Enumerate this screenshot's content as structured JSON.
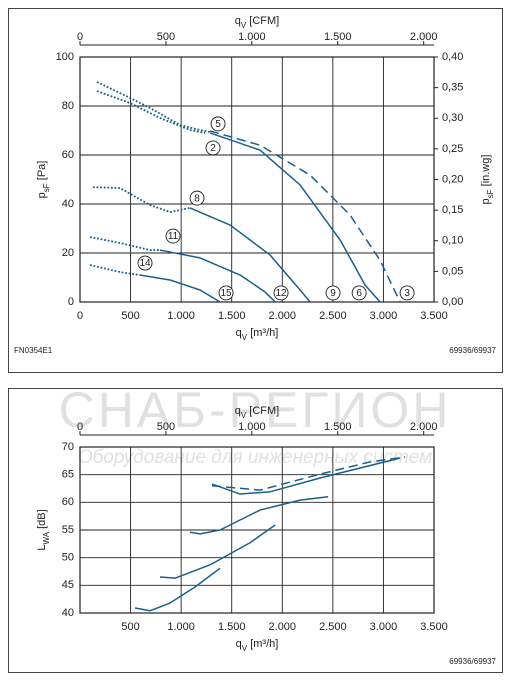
{
  "chart_data": [
    {
      "type": "line",
      "x_label": [
        "q",
        "V",
        " [m³/h]"
      ],
      "x2_label": [
        "q",
        "V",
        " [CFM]"
      ],
      "y_label": [
        "p",
        "sF",
        " [Pa]"
      ],
      "y2_label": [
        "p",
        "sF",
        " [in.wg]"
      ],
      "xlim": [
        0,
        3500
      ],
      "xticks": [
        0,
        500,
        {
          "value": 1000,
          "label": "1.000"
        },
        {
          "value": 1500,
          "label": "1.500"
        },
        {
          "value": 2000,
          "label": "2.000"
        },
        {
          "value": 2500,
          "label": "2.500"
        },
        {
          "value": 3000,
          "label": "3.000"
        },
        {
          "value": 3500,
          "label": "3.500"
        }
      ],
      "x2lim": [
        0,
        2060
      ],
      "x2ticks": [
        0,
        500,
        {
          "value": 1000,
          "label": "1.000"
        },
        {
          "value": 1500,
          "label": "1.500"
        },
        {
          "value": 2000,
          "label": "2.000"
        }
      ],
      "ylim": [
        0,
        100
      ],
      "yticks": [
        0,
        20,
        40,
        60,
        80,
        100
      ],
      "y2lim": [
        0,
        0.4
      ],
      "y2ticks": [
        {
          "value": 0,
          "label": "0,00"
        },
        {
          "value": 0.05,
          "label": "0,05"
        },
        {
          "value": 0.1,
          "label": "0,10"
        },
        {
          "value": 0.15,
          "label": "0,15"
        },
        {
          "value": 0.2,
          "label": "0,20"
        },
        {
          "value": 0.25,
          "label": "0,25"
        },
        {
          "value": 0.3,
          "label": "0,30"
        },
        {
          "value": 0.35,
          "label": "0,35"
        },
        {
          "value": 0.4,
          "label": "0,40"
        }
      ],
      "grid": true,
      "color": "#1b5e8c",
      "series": [
        {
          "style": "dotted",
          "x": [
            168,
            495,
            692,
            989,
            1187,
            1286
          ],
          "values": [
            89.8,
            83.3,
            79.2,
            72.2,
            70.2,
            69.4
          ]
        },
        {
          "style": "dotted",
          "x": [
            168,
            495,
            791,
            1088,
            1236
          ],
          "values": [
            86.1,
            81.2,
            75.1,
            70.2,
            69
          ]
        },
        {
          "style": "solid",
          "x": [
            1286,
            1780,
            2176,
            2572,
            2819,
            2967
          ],
          "values": [
            69,
            62,
            47.8,
            25.3,
            6.9,
            0
          ]
        },
        {
          "style": "dashed",
          "x": [
            1286,
            1780,
            2275,
            2670,
            2967,
            3165
          ],
          "values": [
            69.8,
            64,
            51.8,
            35.5,
            17,
            0
          ]
        },
        {
          "style": "dotted",
          "x": [
            128,
            396,
            692,
            890,
            1088
          ],
          "values": [
            46.9,
            46.5,
            39.6,
            36.7,
            38.4
          ]
        },
        {
          "style": "solid",
          "x": [
            1088,
            1484,
            1879,
            2176,
            2275
          ],
          "values": [
            38.4,
            31.4,
            19.2,
            4.9,
            0
          ]
        },
        {
          "style": "dotted",
          "x": [
            99,
            396,
            692,
            791
          ],
          "values": [
            26.5,
            24.1,
            21.2,
            21.2
          ]
        },
        {
          "style": "solid",
          "x": [
            791,
            1187,
            1583,
            1830,
            1929
          ],
          "values": [
            21.2,
            18,
            11,
            4.1,
            0
          ]
        },
        {
          "style": "dotted",
          "x": [
            99,
            396,
            593
          ],
          "values": [
            15.1,
            12.2,
            11
          ]
        },
        {
          "style": "solid",
          "x": [
            593,
            890,
            1187,
            1385
          ],
          "values": [
            11,
            9,
            4.9,
            0
          ]
        }
      ],
      "annotations": [
        {
          "text": "5",
          "x": 1365,
          "y": 72.7
        },
        {
          "text": "2",
          "x": 1315,
          "y": 62.9
        },
        {
          "text": "8",
          "x": 1157,
          "y": 42.4
        },
        {
          "text": "11",
          "x": 920,
          "y": 26.9
        },
        {
          "text": "14",
          "x": 643,
          "y": 15.9
        },
        {
          "text": "15",
          "x": 1444,
          "y": 3.7
        },
        {
          "text": "12",
          "x": 1988,
          "y": 3.7
        },
        {
          "text": "9",
          "x": 2502,
          "y": 3.7
        },
        {
          "text": "6",
          "x": 2760,
          "y": 3.7
        },
        {
          "text": "3",
          "x": 3234,
          "y": 3.7
        }
      ],
      "note_left": "FN0354E1",
      "note_right": "69936/69937"
    },
    {
      "type": "line",
      "x_label": [
        "q",
        "V",
        " [m³/h]"
      ],
      "x2_label": [
        "q",
        "V",
        " [CFM]"
      ],
      "y_label": [
        "L",
        "WA",
        " [dB]"
      ],
      "xlim": [
        0,
        3500
      ],
      "xticks": [
        500,
        {
          "value": 1000,
          "label": "1.000"
        },
        {
          "value": 1500,
          "label": "1.500"
        },
        {
          "value": 2000,
          "label": "2.000"
        },
        {
          "value": 2500,
          "label": "2.500"
        },
        {
          "value": 3000,
          "label": "3.000"
        },
        {
          "value": 3500,
          "label": "3.500"
        }
      ],
      "x2lim": [
        0,
        2060
      ],
      "x2ticks": [
        0,
        500,
        {
          "value": 1000,
          "label": "1.000"
        },
        {
          "value": 1500,
          "label": "1.500"
        },
        {
          "value": 2000,
          "label": "2.000"
        }
      ],
      "ylim": [
        40,
        70
      ],
      "yticks": [
        40,
        45,
        50,
        55,
        60,
        65,
        70
      ],
      "grid": true,
      "color": "#1b5e8c",
      "series": [
        {
          "style": "solid",
          "x": [
            1306,
            1583,
            1879,
            2374,
            2769,
            3165
          ],
          "values": [
            63.3,
            61.5,
            61.9,
            64.4,
            66.2,
            68
          ]
        },
        {
          "style": "dashed",
          "x": [
            1306,
            1780,
            2374,
            2868,
            3215
          ],
          "values": [
            63,
            62.2,
            65.1,
            67.3,
            68.2
          ]
        },
        {
          "style": "solid",
          "x": [
            1088,
            1187,
            1385,
            1780,
            2176,
            2453
          ],
          "values": [
            54.6,
            54.3,
            55,
            58.6,
            60.4,
            61
          ]
        },
        {
          "style": "solid",
          "x": [
            791,
            940,
            1286,
            1681,
            1929
          ],
          "values": [
            46.5,
            46.3,
            48.7,
            52.7,
            55.9
          ]
        },
        {
          "style": "solid",
          "x": [
            544,
            692,
            890,
            1137,
            1385
          ],
          "values": [
            40.9,
            40.4,
            41.8,
            44.7,
            48.1
          ]
        }
      ],
      "note_right": "69936/69937"
    }
  ],
  "watermark": {
    "title": "СНАБ-РЕГИОН",
    "subtitle": "Оборудование для инженерных систем"
  }
}
